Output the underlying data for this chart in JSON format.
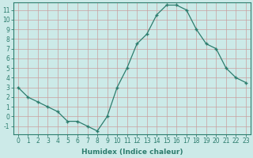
{
  "x": [
    0,
    1,
    2,
    3,
    4,
    5,
    6,
    7,
    8,
    9,
    10,
    11,
    12,
    13,
    14,
    15,
    16,
    17,
    18,
    19,
    20,
    21,
    22,
    23
  ],
  "y": [
    3,
    2,
    1.5,
    1,
    0.5,
    -0.5,
    -0.5,
    -1,
    -1.5,
    0,
    3,
    5,
    7.5,
    8.5,
    10.5,
    11.5,
    11.5,
    11,
    9,
    7.5,
    7,
    5,
    4,
    3.5
  ],
  "line_color": "#2d7d6e",
  "bg_color": "#cceae8",
  "grid_color": "#b0d4d0",
  "xlabel": "Humidex (Indice chaleur)",
  "ylim": [
    -1.8,
    11.8
  ],
  "yticks": [
    -1,
    0,
    1,
    2,
    3,
    4,
    5,
    6,
    7,
    8,
    9,
    10,
    11
  ],
  "xticks": [
    0,
    1,
    2,
    3,
    4,
    5,
    6,
    7,
    8,
    9,
    10,
    11,
    12,
    13,
    14,
    15,
    16,
    17,
    18,
    19,
    20,
    21,
    22,
    23
  ],
  "label_fontsize": 6.5,
  "tick_fontsize": 5.5
}
